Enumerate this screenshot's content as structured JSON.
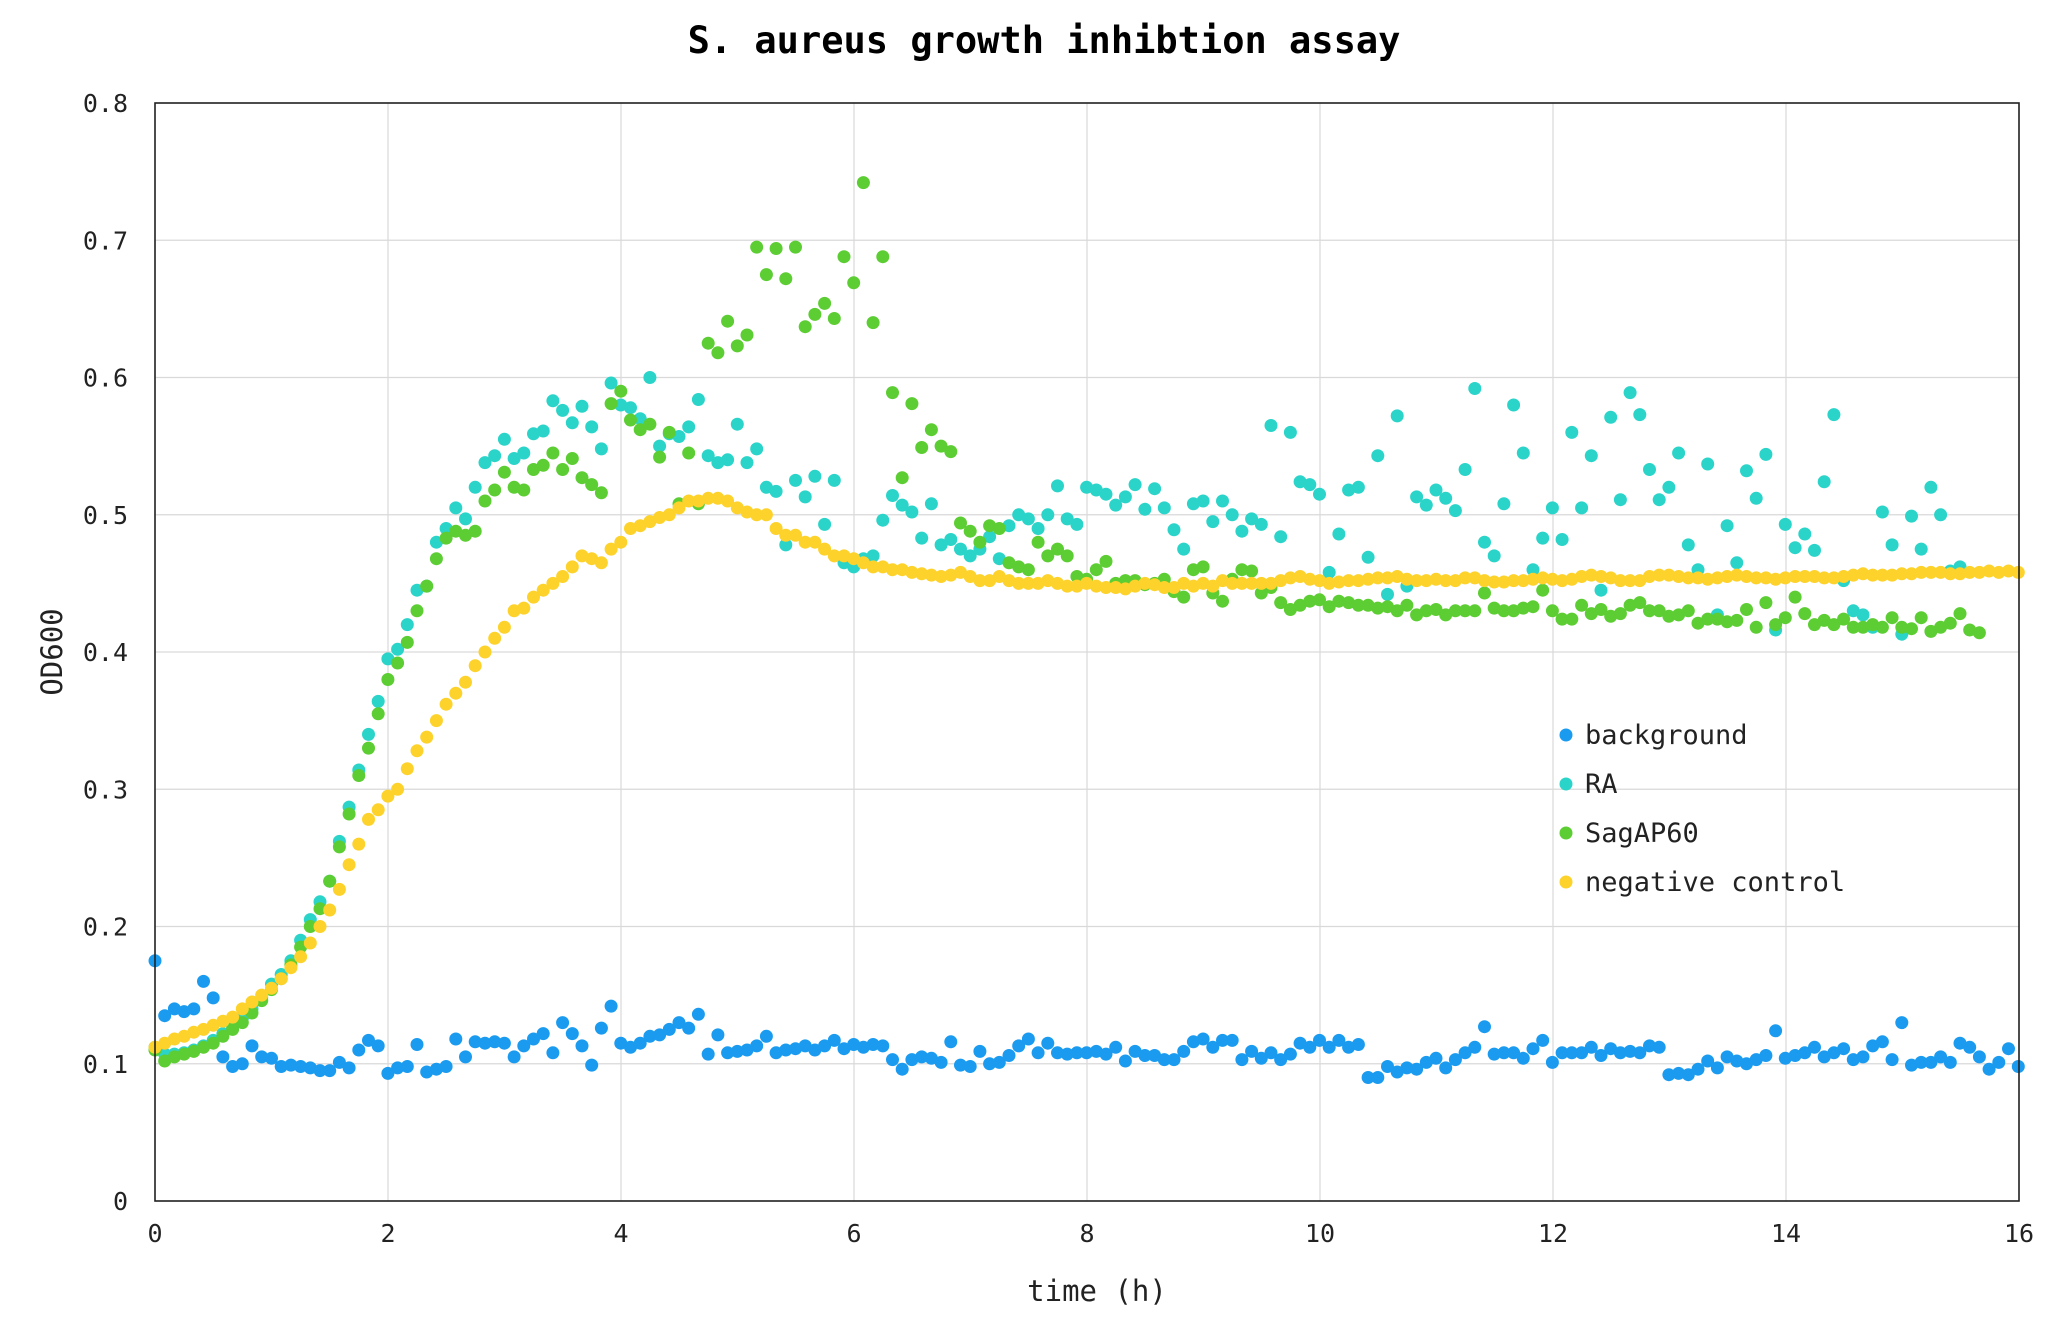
{
  "chart_data": {
    "type": "scatter",
    "title": "S. aureus growth inhibtion assay",
    "xlabel": "time (h)",
    "ylabel": "OD600",
    "xlim": [
      0,
      16
    ],
    "ylim": [
      0,
      0.8
    ],
    "xticks": [
      0,
      2,
      4,
      6,
      8,
      10,
      12,
      14,
      16
    ],
    "yticks": [
      0,
      0.1,
      0.2,
      0.3,
      0.4,
      0.5,
      0.6,
      0.7,
      0.8
    ],
    "xtick_labels": [
      "0",
      "2",
      "4",
      "6",
      "8",
      "10",
      "12",
      "14",
      "16"
    ],
    "ytick_labels": [
      "0",
      "0.1",
      "0.2",
      "0.3",
      "0.4",
      "0.5",
      "0.6",
      "0.7",
      "0.8"
    ],
    "grid": true,
    "legend_position": "right-middle",
    "x_step": 0.0833,
    "series": [
      {
        "name": "background",
        "color": "#1a9bf0",
        "values": [
          0.175,
          0.135,
          0.14,
          0.138,
          0.14,
          0.16,
          0.148,
          0.105,
          0.098,
          0.1,
          0.113,
          0.105,
          0.104,
          0.098,
          0.099,
          0.098,
          0.097,
          0.095,
          0.095,
          0.101,
          0.097,
          0.11,
          0.117,
          0.113,
          0.093,
          0.097,
          0.098,
          0.114,
          0.094,
          0.096,
          0.098,
          0.118,
          0.105,
          0.116,
          0.115,
          0.116,
          0.115,
          0.105,
          0.113,
          0.118,
          0.122,
          0.108,
          0.13,
          0.122,
          0.113,
          0.099,
          0.126,
          0.142,
          0.115,
          0.112,
          0.115,
          0.12,
          0.121,
          0.125,
          0.13,
          0.126,
          0.136,
          0.107,
          0.121,
          0.108,
          0.109,
          0.11,
          0.113,
          0.12,
          0.108,
          0.11,
          0.111,
          0.113,
          0.11,
          0.113,
          0.117,
          0.111,
          0.114,
          0.112,
          0.114,
          0.113,
          0.103,
          0.096,
          0.103,
          0.105,
          0.104,
          0.101,
          0.116,
          0.099,
          0.098,
          0.109,
          0.1,
          0.101,
          0.106,
          0.113,
          0.118,
          0.108,
          0.115,
          0.108,
          0.107,
          0.108,
          0.108,
          0.109,
          0.107,
          0.112,
          0.102,
          0.109,
          0.106,
          0.106,
          0.103,
          0.103,
          0.109,
          0.116,
          0.118,
          0.112,
          0.117,
          0.117,
          0.103,
          0.109,
          0.104,
          0.108,
          0.103,
          0.107,
          0.115,
          0.112,
          0.117,
          0.112,
          0.117,
          0.112,
          0.114,
          0.09,
          0.09,
          0.098,
          0.094,
          0.097,
          0.096,
          0.101,
          0.104,
          0.097,
          0.103,
          0.108,
          0.112,
          0.127,
          0.107,
          0.108,
          0.108,
          0.104,
          0.111,
          0.117,
          0.101,
          0.108,
          0.108,
          0.108,
          0.112,
          0.106,
          0.111,
          0.108,
          0.109,
          0.108,
          0.113,
          0.112,
          0.092,
          0.093,
          0.092,
          0.096,
          0.102,
          0.097,
          0.105,
          0.102,
          0.1,
          0.103,
          0.106,
          0.124,
          0.104,
          0.106,
          0.108,
          0.112,
          0.105,
          0.108,
          0.111,
          0.103,
          0.105,
          0.113,
          0.116,
          0.103,
          0.13,
          0.099,
          0.101,
          0.101,
          0.105,
          0.101,
          0.115,
          0.112,
          0.105,
          0.096,
          0.101,
          0.111,
          0.098,
          0.098,
          0.114,
          0.102,
          0.095,
          0.109,
          0.107,
          0.108,
          0.103,
          0.094
        ]
      },
      {
        "name": "RA",
        "color": "#2ad4c9",
        "values": [
          0.112,
          0.107,
          0.107,
          0.108,
          0.11,
          0.113,
          0.117,
          0.122,
          0.127,
          0.133,
          0.14,
          0.148,
          0.158,
          0.165,
          0.175,
          0.19,
          0.205,
          0.218,
          0.233,
          0.262,
          0.287,
          0.314,
          0.34,
          0.364,
          0.395,
          0.402,
          0.42,
          0.445,
          0.448,
          0.48,
          0.49,
          0.505,
          0.497,
          0.52,
          0.538,
          0.543,
          0.555,
          0.541,
          0.545,
          0.559,
          0.561,
          0.583,
          0.576,
          0.567,
          0.579,
          0.564,
          0.548,
          0.596,
          0.58,
          0.578,
          0.57,
          0.6,
          0.55,
          0.559,
          0.557,
          0.564,
          0.584,
          0.543,
          0.538,
          0.54,
          0.566,
          0.538,
          0.548,
          0.52,
          0.517,
          0.478,
          0.525,
          0.513,
          0.528,
          0.493,
          0.525,
          0.465,
          0.462,
          0.468,
          0.47,
          0.496,
          0.514,
          0.507,
          0.502,
          0.483,
          0.508,
          0.478,
          0.482,
          0.475,
          0.47,
          0.475,
          0.484,
          0.468,
          0.492,
          0.5,
          0.497,
          0.49,
          0.5,
          0.521,
          0.497,
          0.493,
          0.52,
          0.518,
          0.515,
          0.507,
          0.513,
          0.522,
          0.504,
          0.519,
          0.505,
          0.489,
          0.475,
          0.508,
          0.51,
          0.495,
          0.51,
          0.5,
          0.488,
          0.497,
          0.493,
          0.565,
          0.484,
          0.56,
          0.524,
          0.522,
          0.515,
          0.458,
          0.486,
          0.518,
          0.52,
          0.469,
          0.543,
          0.442,
          0.572,
          0.448,
          0.513,
          0.507,
          0.518,
          0.512,
          0.503,
          0.533,
          0.592,
          0.48,
          0.47,
          0.508,
          0.58,
          0.545,
          0.46,
          0.483,
          0.505,
          0.482,
          0.56,
          0.505,
          0.543,
          0.445,
          0.571,
          0.511,
          0.589,
          0.573,
          0.533,
          0.511,
          0.52,
          0.545,
          0.478,
          0.46,
          0.537,
          0.427,
          0.492,
          0.465,
          0.532,
          0.512,
          0.544,
          0.416,
          0.493,
          0.476,
          0.486,
          0.474,
          0.524,
          0.573,
          0.452,
          0.43,
          0.427,
          0.418,
          0.502,
          0.478,
          0.413,
          0.499,
          0.475,
          0.52,
          0.5,
          0.459,
          0.462
        ]
      },
      {
        "name": "SagAP60",
        "color": "#5ccd32",
        "values": [
          0.11,
          0.102,
          0.105,
          0.107,
          0.109,
          0.112,
          0.115,
          0.12,
          0.125,
          0.13,
          0.137,
          0.146,
          0.154,
          0.162,
          0.172,
          0.185,
          0.2,
          0.213,
          0.233,
          0.258,
          0.282,
          0.31,
          0.33,
          0.355,
          0.38,
          0.392,
          0.407,
          0.43,
          0.448,
          0.468,
          0.483,
          0.488,
          0.485,
          0.488,
          0.51,
          0.518,
          0.531,
          0.52,
          0.518,
          0.533,
          0.536,
          0.545,
          0.533,
          0.541,
          0.527,
          0.522,
          0.516,
          0.581,
          0.59,
          0.569,
          0.562,
          0.566,
          0.542,
          0.56,
          0.508,
          0.545,
          0.508,
          0.625,
          0.618,
          0.641,
          0.623,
          0.631,
          0.695,
          0.675,
          0.694,
          0.672,
          0.695,
          0.637,
          0.646,
          0.654,
          0.643,
          0.688,
          0.669,
          0.742,
          0.64,
          0.688,
          0.589,
          0.527,
          0.581,
          0.549,
          0.562,
          0.55,
          0.546,
          0.494,
          0.488,
          0.48,
          0.492,
          0.49,
          0.465,
          0.462,
          0.46,
          0.48,
          0.47,
          0.475,
          0.47,
          0.455,
          0.453,
          0.46,
          0.466,
          0.45,
          0.452,
          0.452,
          0.449,
          0.45,
          0.453,
          0.444,
          0.44,
          0.46,
          0.462,
          0.443,
          0.437,
          0.453,
          0.46,
          0.459,
          0.443,
          0.447,
          0.436,
          0.431,
          0.434,
          0.437,
          0.438,
          0.433,
          0.437,
          0.436,
          0.434,
          0.434,
          0.432,
          0.433,
          0.43,
          0.434,
          0.427,
          0.43,
          0.431,
          0.427,
          0.43,
          0.43,
          0.43,
          0.443,
          0.432,
          0.43,
          0.43,
          0.432,
          0.433,
          0.445,
          0.43,
          0.424,
          0.424,
          0.434,
          0.428,
          0.431,
          0.426,
          0.428,
          0.434,
          0.436,
          0.43,
          0.43,
          0.426,
          0.427,
          0.43,
          0.421,
          0.424,
          0.424,
          0.422,
          0.423,
          0.431,
          0.418,
          0.436,
          0.42,
          0.425,
          0.44,
          0.428,
          0.42,
          0.423,
          0.42,
          0.424,
          0.418,
          0.418,
          0.42,
          0.418,
          0.425,
          0.418,
          0.417,
          0.425,
          0.415,
          0.418,
          0.421,
          0.428,
          0.416,
          0.414
        ]
      },
      {
        "name": "negative control",
        "color": "#fdd22b",
        "values": [
          0.112,
          0.115,
          0.118,
          0.12,
          0.123,
          0.125,
          0.128,
          0.131,
          0.134,
          0.14,
          0.145,
          0.15,
          0.155,
          0.162,
          0.17,
          0.178,
          0.188,
          0.2,
          0.212,
          0.227,
          0.245,
          0.26,
          0.278,
          0.285,
          0.295,
          0.3,
          0.315,
          0.328,
          0.338,
          0.35,
          0.362,
          0.37,
          0.378,
          0.39,
          0.4,
          0.41,
          0.418,
          0.43,
          0.432,
          0.44,
          0.445,
          0.45,
          0.455,
          0.462,
          0.47,
          0.468,
          0.465,
          0.475,
          0.48,
          0.49,
          0.492,
          0.495,
          0.498,
          0.5,
          0.505,
          0.51,
          0.51,
          0.512,
          0.512,
          0.51,
          0.505,
          0.502,
          0.5,
          0.5,
          0.49,
          0.485,
          0.485,
          0.48,
          0.48,
          0.475,
          0.47,
          0.47,
          0.468,
          0.465,
          0.462,
          0.462,
          0.46,
          0.46,
          0.458,
          0.457,
          0.456,
          0.455,
          0.456,
          0.458,
          0.455,
          0.452,
          0.452,
          0.455,
          0.452,
          0.45,
          0.45,
          0.45,
          0.452,
          0.45,
          0.448,
          0.448,
          0.45,
          0.448,
          0.447,
          0.447,
          0.446,
          0.448,
          0.45,
          0.449,
          0.447,
          0.447,
          0.45,
          0.448,
          0.45,
          0.448,
          0.452,
          0.45,
          0.45,
          0.45,
          0.45,
          0.45,
          0.452,
          0.454,
          0.455,
          0.453,
          0.452,
          0.45,
          0.451,
          0.452,
          0.452,
          0.453,
          0.454,
          0.454,
          0.455,
          0.453,
          0.452,
          0.452,
          0.453,
          0.452,
          0.452,
          0.454,
          0.454,
          0.452,
          0.451,
          0.451,
          0.452,
          0.452,
          0.453,
          0.454,
          0.453,
          0.452,
          0.453,
          0.455,
          0.456,
          0.455,
          0.454,
          0.452,
          0.452,
          0.452,
          0.455,
          0.456,
          0.456,
          0.455,
          0.454,
          0.454,
          0.453,
          0.454,
          0.455,
          0.456,
          0.455,
          0.454,
          0.454,
          0.453,
          0.454,
          0.455,
          0.455,
          0.455,
          0.454,
          0.454,
          0.455,
          0.456,
          0.457,
          0.456,
          0.456,
          0.456,
          0.457,
          0.457,
          0.458,
          0.458,
          0.458,
          0.457,
          0.457,
          0.458,
          0.458,
          0.459,
          0.458,
          0.459,
          0.458,
          0.458,
          0.457,
          0.457,
          0.457,
          0.456
        ]
      }
    ]
  }
}
